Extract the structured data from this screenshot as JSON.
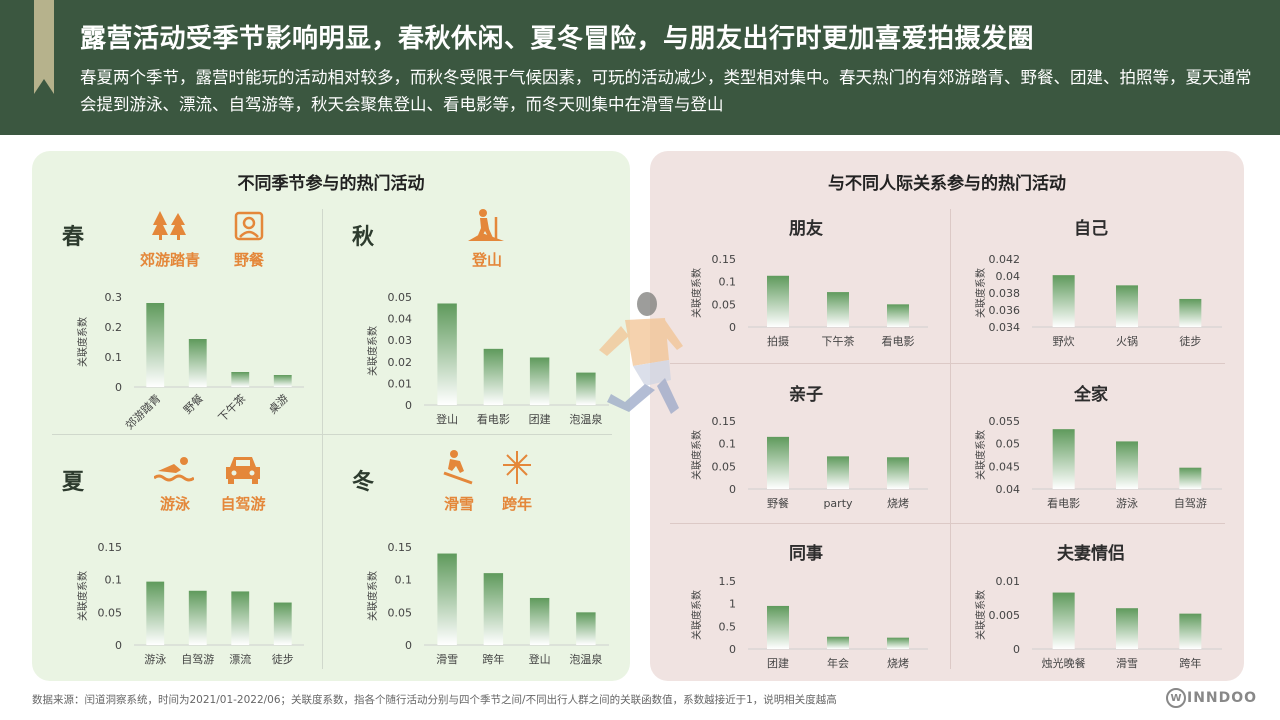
{
  "header": {
    "title": "露营活动受季节影响明显，春秋休闲、夏冬冒险，与朋友出行时更加喜爱拍摄发圈",
    "subtitle": "春夏两个季节，露营时能玩的活动相对较多，而秋冬受限于气候因素，可玩的活动减少，类型相对集中。春天热门的有郊游踏青、野餐、团建、拍照等，夏天通常会提到游泳、漂流、自驾游等，秋天会聚焦登山、看电影等，而冬天则集中在滑雪与登山"
  },
  "left_panel": {
    "title": "不同季节参与的热门活动",
    "seasons": [
      {
        "label": "春",
        "activities": [
          {
            "label": "郊游踏青",
            "icon": "trees-icon"
          },
          {
            "label": "野餐",
            "icon": "picnic-basket-icon"
          }
        ]
      },
      {
        "label": "秋",
        "activities": [
          {
            "label": "登山",
            "icon": "hiker-icon"
          }
        ]
      },
      {
        "label": "夏",
        "activities": [
          {
            "label": "游泳",
            "icon": "swimmer-icon"
          },
          {
            "label": "自驾游",
            "icon": "car-icon"
          }
        ]
      },
      {
        "label": "冬",
        "activities": [
          {
            "label": "滑雪",
            "icon": "skier-icon"
          },
          {
            "label": "跨年",
            "icon": "fireworks-icon"
          }
        ]
      }
    ]
  },
  "right_panel": {
    "title": "与不同人际关系参与的热门活动",
    "relations": [
      "朋友",
      "自己",
      "亲子",
      "全家",
      "同事",
      "夫妻情侣"
    ]
  },
  "colors": {
    "header_bg": "#3b5740",
    "ribbon": "#b6b28c",
    "left_panel_bg": "#eaf4e3",
    "right_panel_bg": "#f0e3e1",
    "bar_top": "#5f9a5c",
    "bar_bottom": "#ffffff",
    "accent": "#e4873a"
  },
  "chart_data": [
    {
      "id": "spring",
      "type": "bar",
      "ylabel": "关联度系数",
      "categories": [
        "郊游踏青",
        "野餐",
        "下午茶",
        "桌游"
      ],
      "values": [
        0.28,
        0.16,
        0.05,
        0.04
      ],
      "yticks": [
        "0",
        "0.1",
        "0.2",
        "0.3"
      ],
      "ylim": [
        0,
        0.3
      ],
      "rotate_labels": true
    },
    {
      "id": "autumn",
      "type": "bar",
      "ylabel": "关联度系数",
      "categories": [
        "登山",
        "看电影",
        "团建",
        "泡温泉"
      ],
      "values": [
        0.047,
        0.026,
        0.022,
        0.015
      ],
      "yticks": [
        "0",
        "0.01",
        "0.02",
        "0.03",
        "0.04",
        "0.05"
      ],
      "ylim": [
        0,
        0.05
      ]
    },
    {
      "id": "summer",
      "type": "bar",
      "ylabel": "关联度系数",
      "categories": [
        "游泳",
        "自驾游",
        "漂流",
        "徒步"
      ],
      "values": [
        0.097,
        0.083,
        0.082,
        0.065
      ],
      "yticks": [
        "0",
        "0.05",
        "0.1",
        "0.15"
      ],
      "ylim": [
        0,
        0.15
      ]
    },
    {
      "id": "winter",
      "type": "bar",
      "ylabel": "关联度系数",
      "categories": [
        "滑雪",
        "跨年",
        "登山",
        "泡温泉"
      ],
      "values": [
        0.14,
        0.11,
        0.072,
        0.05
      ],
      "yticks": [
        "0",
        "0.05",
        "0.1",
        "0.15"
      ],
      "ylim": [
        0,
        0.15
      ]
    },
    {
      "id": "friends",
      "type": "bar",
      "ylabel": "关联度系数",
      "categories": [
        "拍摄",
        "下午茶",
        "看电影"
      ],
      "values": [
        0.113,
        0.077,
        0.05
      ],
      "yticks": [
        "0",
        "0.05",
        "0.1",
        "0.15"
      ],
      "ylim": [
        0,
        0.15
      ]
    },
    {
      "id": "self",
      "type": "bar",
      "ylabel": "关联度系数",
      "categories": [
        "野炊",
        "火锅",
        "徒步"
      ],
      "values": [
        0.0401,
        0.0389,
        0.0373
      ],
      "yticks": [
        "0.034",
        "0.036",
        "0.038",
        "0.04",
        "0.042"
      ],
      "ylim": [
        0.034,
        0.042
      ]
    },
    {
      "id": "parent_child",
      "type": "bar",
      "ylabel": "关联度系数",
      "categories": [
        "野餐",
        "party",
        "烧烤"
      ],
      "values": [
        0.115,
        0.072,
        0.07
      ],
      "yticks": [
        "0",
        "0.05",
        "0.1",
        "0.15"
      ],
      "ylim": [
        0,
        0.15
      ]
    },
    {
      "id": "family",
      "type": "bar",
      "ylabel": "关联度系数",
      "categories": [
        "看电影",
        "游泳",
        "自驾游"
      ],
      "values": [
        0.0532,
        0.0505,
        0.0447
      ],
      "yticks": [
        "0.04",
        "0.045",
        "0.05",
        "0.055"
      ],
      "ylim": [
        0.04,
        0.055
      ]
    },
    {
      "id": "colleagues",
      "type": "bar",
      "ylabel": "关联度系数",
      "categories": [
        "团建",
        "年会",
        "烧烤"
      ],
      "values": [
        0.95,
        0.27,
        0.25
      ],
      "yticks": [
        "0",
        "0.5",
        "1",
        "1.5"
      ],
      "ylim": [
        0,
        1.5
      ]
    },
    {
      "id": "couple",
      "type": "bar",
      "ylabel": "关联度系数",
      "categories": [
        "烛光晚餐",
        "滑雪",
        "跨年"
      ],
      "values": [
        0.0083,
        0.006,
        0.0052
      ],
      "yticks": [
        "0",
        "0.005",
        "0.01"
      ],
      "ylim": [
        0,
        0.01
      ]
    }
  ],
  "footer": {
    "source": "数据来源：闰道洞察系统，时间为2021/01-2022/06；关联度系数，指各个随行活动分别与四个季节之间/不同出行人群之间的关联函数值，系数越接近于1，说明相关度越高",
    "logo_mark": "W",
    "logo_text": "INNDOO"
  }
}
